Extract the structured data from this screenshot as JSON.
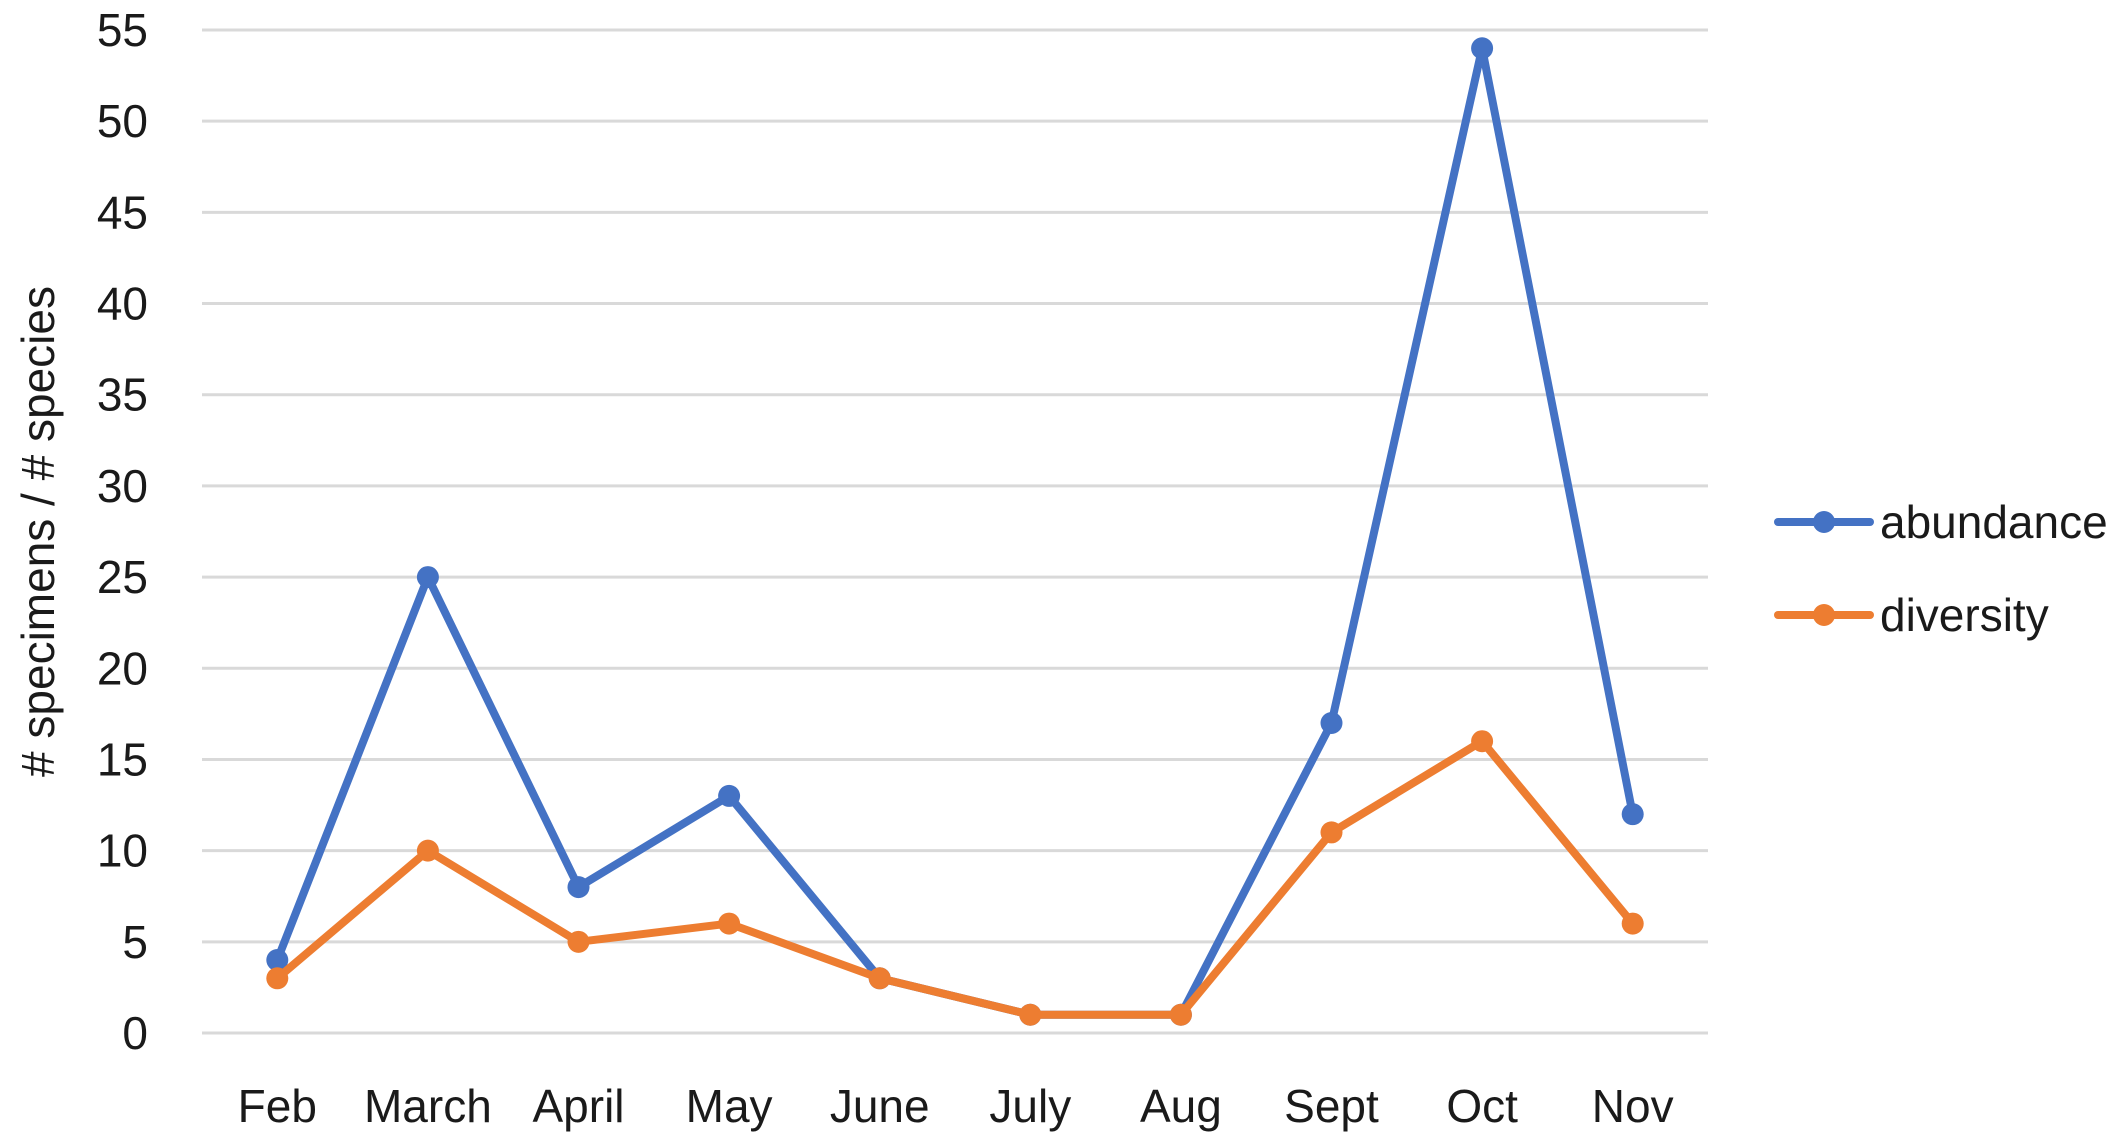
{
  "chart_data": {
    "type": "line",
    "categories": [
      "Feb",
      "March",
      "April",
      "May",
      "June",
      "July",
      "Aug",
      "Sept",
      "Oct",
      "Nov"
    ],
    "series": [
      {
        "name": "abundance",
        "color": "#4472C4",
        "values": [
          4,
          25,
          8,
          13,
          3,
          1,
          1,
          17,
          54,
          12
        ]
      },
      {
        "name": "diversity",
        "color": "#ED7D31",
        "values": [
          3,
          10,
          5,
          6,
          3,
          1,
          1,
          11,
          16,
          6
        ]
      }
    ],
    "title": "",
    "xlabel": "",
    "ylabel": "# specimens / # species",
    "ylim": [
      0,
      55
    ],
    "yticks": [
      0,
      5,
      10,
      15,
      20,
      25,
      30,
      35,
      40,
      45,
      50,
      55
    ],
    "grid": "horizontal",
    "gridColor": "#d9d9d9",
    "legend_position": "right"
  }
}
